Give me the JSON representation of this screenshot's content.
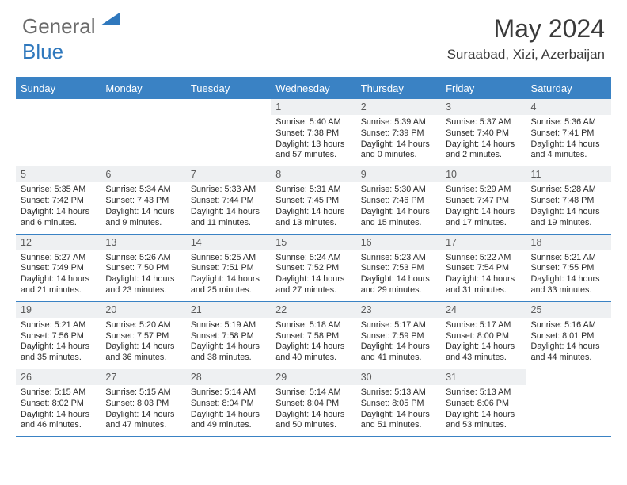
{
  "logo": {
    "general": "General",
    "blue": "Blue"
  },
  "title": "May 2024",
  "location": "Suraabad, Xizi, Azerbaijan",
  "colors": {
    "header_bg": "#3a82c4",
    "daynum_bg": "#eef0f2",
    "logo_gray": "#6b6b6b",
    "logo_blue": "#2f78bd"
  },
  "daysOfWeek": [
    "Sunday",
    "Monday",
    "Tuesday",
    "Wednesday",
    "Thursday",
    "Friday",
    "Saturday"
  ],
  "firstDayIndex": 3,
  "daysInMonth": 31,
  "entries": {
    "1": {
      "sunrise": "5:40 AM",
      "sunset": "7:38 PM",
      "daylight": "13 hours and 57 minutes."
    },
    "2": {
      "sunrise": "5:39 AM",
      "sunset": "7:39 PM",
      "daylight": "14 hours and 0 minutes."
    },
    "3": {
      "sunrise": "5:37 AM",
      "sunset": "7:40 PM",
      "daylight": "14 hours and 2 minutes."
    },
    "4": {
      "sunrise": "5:36 AM",
      "sunset": "7:41 PM",
      "daylight": "14 hours and 4 minutes."
    },
    "5": {
      "sunrise": "5:35 AM",
      "sunset": "7:42 PM",
      "daylight": "14 hours and 6 minutes."
    },
    "6": {
      "sunrise": "5:34 AM",
      "sunset": "7:43 PM",
      "daylight": "14 hours and 9 minutes."
    },
    "7": {
      "sunrise": "5:33 AM",
      "sunset": "7:44 PM",
      "daylight": "14 hours and 11 minutes."
    },
    "8": {
      "sunrise": "5:31 AM",
      "sunset": "7:45 PM",
      "daylight": "14 hours and 13 minutes."
    },
    "9": {
      "sunrise": "5:30 AM",
      "sunset": "7:46 PM",
      "daylight": "14 hours and 15 minutes."
    },
    "10": {
      "sunrise": "5:29 AM",
      "sunset": "7:47 PM",
      "daylight": "14 hours and 17 minutes."
    },
    "11": {
      "sunrise": "5:28 AM",
      "sunset": "7:48 PM",
      "daylight": "14 hours and 19 minutes."
    },
    "12": {
      "sunrise": "5:27 AM",
      "sunset": "7:49 PM",
      "daylight": "14 hours and 21 minutes."
    },
    "13": {
      "sunrise": "5:26 AM",
      "sunset": "7:50 PM",
      "daylight": "14 hours and 23 minutes."
    },
    "14": {
      "sunrise": "5:25 AM",
      "sunset": "7:51 PM",
      "daylight": "14 hours and 25 minutes."
    },
    "15": {
      "sunrise": "5:24 AM",
      "sunset": "7:52 PM",
      "daylight": "14 hours and 27 minutes."
    },
    "16": {
      "sunrise": "5:23 AM",
      "sunset": "7:53 PM",
      "daylight": "14 hours and 29 minutes."
    },
    "17": {
      "sunrise": "5:22 AM",
      "sunset": "7:54 PM",
      "daylight": "14 hours and 31 minutes."
    },
    "18": {
      "sunrise": "5:21 AM",
      "sunset": "7:55 PM",
      "daylight": "14 hours and 33 minutes."
    },
    "19": {
      "sunrise": "5:21 AM",
      "sunset": "7:56 PM",
      "daylight": "14 hours and 35 minutes."
    },
    "20": {
      "sunrise": "5:20 AM",
      "sunset": "7:57 PM",
      "daylight": "14 hours and 36 minutes."
    },
    "21": {
      "sunrise": "5:19 AM",
      "sunset": "7:58 PM",
      "daylight": "14 hours and 38 minutes."
    },
    "22": {
      "sunrise": "5:18 AM",
      "sunset": "7:58 PM",
      "daylight": "14 hours and 40 minutes."
    },
    "23": {
      "sunrise": "5:17 AM",
      "sunset": "7:59 PM",
      "daylight": "14 hours and 41 minutes."
    },
    "24": {
      "sunrise": "5:17 AM",
      "sunset": "8:00 PM",
      "daylight": "14 hours and 43 minutes."
    },
    "25": {
      "sunrise": "5:16 AM",
      "sunset": "8:01 PM",
      "daylight": "14 hours and 44 minutes."
    },
    "26": {
      "sunrise": "5:15 AM",
      "sunset": "8:02 PM",
      "daylight": "14 hours and 46 minutes."
    },
    "27": {
      "sunrise": "5:15 AM",
      "sunset": "8:03 PM",
      "daylight": "14 hours and 47 minutes."
    },
    "28": {
      "sunrise": "5:14 AM",
      "sunset": "8:04 PM",
      "daylight": "14 hours and 49 minutes."
    },
    "29": {
      "sunrise": "5:14 AM",
      "sunset": "8:04 PM",
      "daylight": "14 hours and 50 minutes."
    },
    "30": {
      "sunrise": "5:13 AM",
      "sunset": "8:05 PM",
      "daylight": "14 hours and 51 minutes."
    },
    "31": {
      "sunrise": "5:13 AM",
      "sunset": "8:06 PM",
      "daylight": "14 hours and 53 minutes."
    }
  },
  "labels": {
    "sunrise": "Sunrise: ",
    "sunset": "Sunset: ",
    "daylight": "Daylight: "
  }
}
